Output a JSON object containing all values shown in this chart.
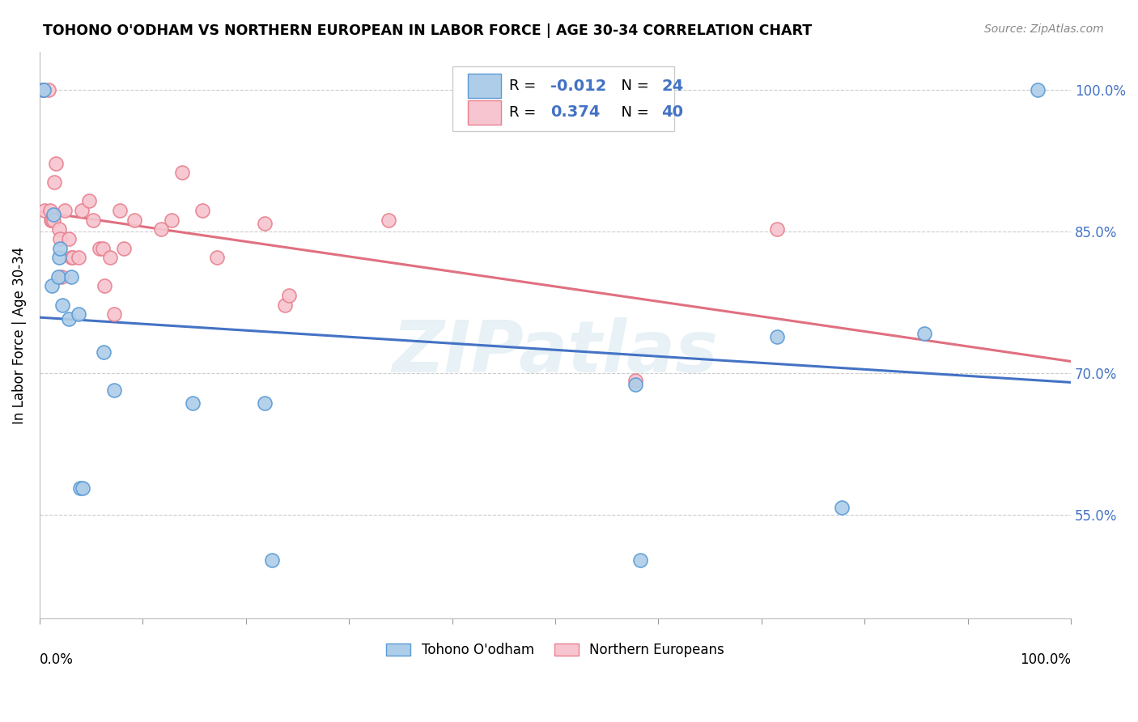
{
  "title": "TOHONO O'ODHAM VS NORTHERN EUROPEAN IN LABOR FORCE | AGE 30-34 CORRELATION CHART",
  "source": "Source: ZipAtlas.com",
  "ylabel": "In Labor Force | Age 30-34",
  "watermark": "ZIPatlas",
  "legend_blue_r": "-0.012",
  "legend_blue_n": "24",
  "legend_pink_r": "0.374",
  "legend_pink_n": "40",
  "blue_color": "#aecde8",
  "pink_color": "#f7c5cf",
  "blue_edge_color": "#5b9bd5",
  "pink_edge_color": "#e8808f",
  "blue_line_color": "#4472c4",
  "pink_line_color": "#e07080",
  "xlim": [
    0.0,
    1.0
  ],
  "ylim": [
    0.44,
    1.04
  ],
  "ytick_positions": [
    0.55,
    0.7,
    0.85,
    1.0
  ],
  "ytick_labels": [
    "55.0%",
    "70.0%",
    "85.0%",
    "100.0%"
  ],
  "blue_points_x": [
    0.003,
    0.004,
    0.012,
    0.013,
    0.018,
    0.019,
    0.02,
    0.022,
    0.028,
    0.031,
    0.038,
    0.039,
    0.042,
    0.062,
    0.072,
    0.148,
    0.218,
    0.225,
    0.578,
    0.582,
    0.715,
    0.778,
    0.858,
    0.968
  ],
  "blue_points_y": [
    1.0,
    1.0,
    0.792,
    0.868,
    0.802,
    0.822,
    0.832,
    0.772,
    0.757,
    0.802,
    0.762,
    0.578,
    0.578,
    0.722,
    0.682,
    0.668,
    0.668,
    0.502,
    0.688,
    0.502,
    0.738,
    0.558,
    0.742,
    1.0
  ],
  "pink_points_x": [
    0.003,
    0.004,
    0.005,
    0.009,
    0.01,
    0.011,
    0.012,
    0.013,
    0.014,
    0.016,
    0.019,
    0.02,
    0.021,
    0.024,
    0.028,
    0.031,
    0.032,
    0.038,
    0.041,
    0.048,
    0.052,
    0.058,
    0.061,
    0.063,
    0.068,
    0.072,
    0.078,
    0.082,
    0.092,
    0.118,
    0.128,
    0.138,
    0.158,
    0.172,
    0.218,
    0.238,
    0.242,
    0.338,
    0.578,
    0.715
  ],
  "pink_points_y": [
    1.0,
    1.0,
    0.872,
    1.0,
    0.872,
    0.862,
    0.862,
    0.862,
    0.902,
    0.922,
    0.852,
    0.842,
    0.802,
    0.872,
    0.842,
    0.822,
    0.822,
    0.822,
    0.872,
    0.882,
    0.862,
    0.832,
    0.832,
    0.792,
    0.822,
    0.762,
    0.872,
    0.832,
    0.862,
    0.852,
    0.862,
    0.912,
    0.872,
    0.822,
    0.858,
    0.772,
    0.782,
    0.862,
    0.692,
    0.852
  ]
}
